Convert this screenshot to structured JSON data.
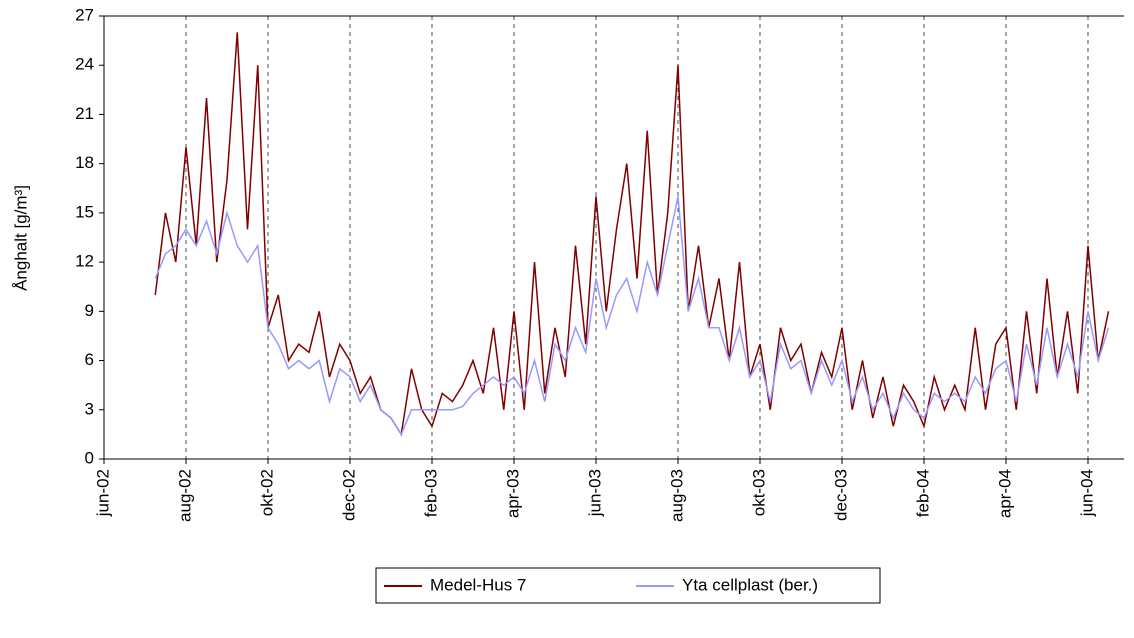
{
  "chart_data": {
    "type": "line",
    "y_label": "Ånghalt [g/m³]",
    "categories": [
      "jun-02",
      null,
      null,
      null,
      null,
      null,
      null,
      null,
      "aug-02",
      null,
      null,
      null,
      null,
      null,
      null,
      null,
      "okt-02",
      null,
      null,
      null,
      null,
      null,
      null,
      null,
      "dec-02",
      null,
      null,
      null,
      null,
      null,
      null,
      null,
      "feb-03",
      null,
      null,
      null,
      null,
      null,
      null,
      null,
      "apr-03",
      null,
      null,
      null,
      null,
      null,
      null,
      null,
      "jun-03",
      null,
      null,
      null,
      null,
      null,
      null,
      null,
      "aug-03",
      null,
      null,
      null,
      null,
      null,
      null,
      null,
      "okt-03",
      null,
      null,
      null,
      null,
      null,
      null,
      null,
      "dec-03",
      null,
      null,
      null,
      null,
      null,
      null,
      null,
      "feb-04",
      null,
      null,
      null,
      null,
      null,
      null,
      null,
      "apr-04",
      null,
      null,
      null,
      null,
      null,
      null,
      null,
      "jun-04",
      null,
      null
    ],
    "series": [
      {
        "name": "Medel-Hus 7",
        "color": "#800000",
        "values": [
          null,
          null,
          null,
          null,
          null,
          10,
          15,
          12,
          19,
          13,
          22,
          12,
          17,
          26,
          14,
          24,
          8,
          10,
          6,
          7,
          6.5,
          9,
          5,
          7,
          6,
          4,
          5,
          3,
          2.5,
          1.5,
          5.5,
          3,
          2,
          4,
          3.5,
          4.5,
          6,
          4,
          8,
          3,
          9,
          3,
          12,
          4,
          8,
          5,
          13,
          7,
          16,
          9,
          14,
          18,
          11,
          20,
          10,
          15,
          24,
          9,
          13,
          8,
          11,
          6,
          12,
          5,
          7,
          3,
          8,
          6,
          7,
          4,
          6.5,
          5,
          8,
          3,
          6,
          2.5,
          5,
          2,
          4.5,
          3.5,
          2,
          5,
          3,
          4.5,
          3,
          8,
          3,
          7,
          8,
          3,
          9,
          4,
          11,
          5,
          9,
          4,
          13,
          6,
          9
        ]
      },
      {
        "name": "Yta cellplast (ber.)",
        "color": "#9999ff",
        "values": [
          null,
          null,
          null,
          null,
          null,
          11,
          12.5,
          13,
          14,
          13,
          14.5,
          12.5,
          15,
          13,
          12,
          13,
          8,
          7,
          5.5,
          6,
          5.5,
          6,
          3.5,
          5.5,
          5,
          3.5,
          4.5,
          3,
          2.5,
          1.5,
          3,
          3,
          3,
          3,
          3,
          3.2,
          4,
          4.5,
          5,
          4.5,
          5,
          4,
          6,
          3.5,
          7,
          6,
          8,
          6.5,
          11,
          8,
          10,
          11,
          9,
          12,
          10,
          13,
          16,
          9,
          11,
          8,
          8,
          6,
          8,
          5,
          6,
          3.5,
          7,
          5.5,
          6,
          4,
          6,
          4.5,
          6,
          3.5,
          5,
          3,
          4,
          2.5,
          4,
          3,
          2.5,
          4,
          3.5,
          4,
          3.5,
          5,
          4,
          5.5,
          6,
          3.5,
          7,
          4.5,
          8,
          5,
          7,
          5,
          9,
          6,
          8
        ]
      }
    ],
    "ylim": [
      0,
      27
    ],
    "yticks": [
      0,
      3,
      6,
      9,
      12,
      15,
      18,
      21,
      24,
      27
    ],
    "grid": true,
    "legend": "bottom"
  }
}
